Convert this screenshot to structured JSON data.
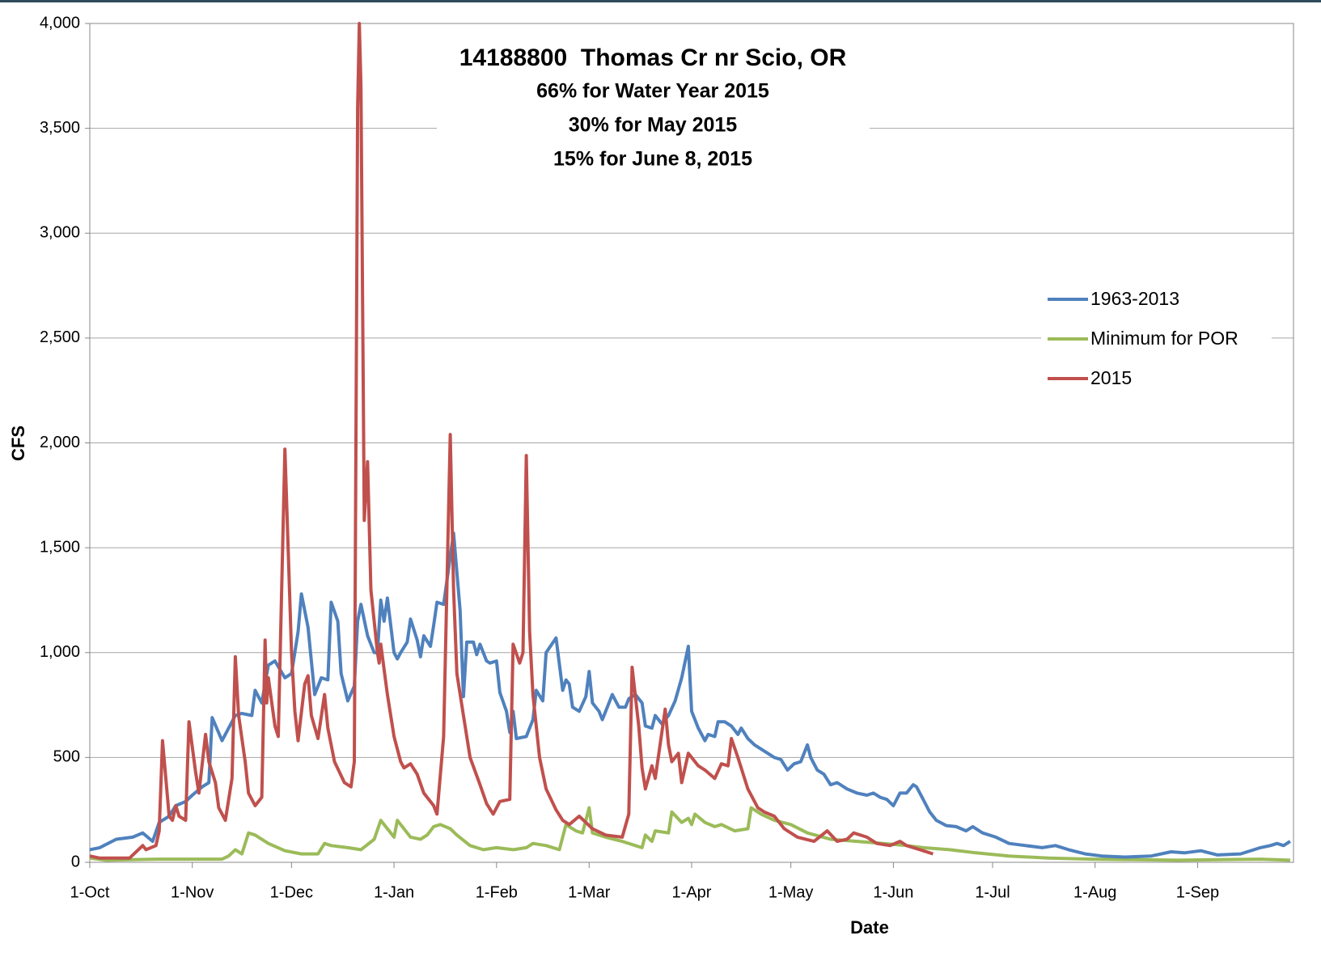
{
  "chart_data": {
    "type": "line",
    "title": "14188800  Thomas Cr nr Scio, OR",
    "subtitle": [
      "66% for Water Year 2015",
      "30% for May 2015",
      "15% for June 8, 2015"
    ],
    "x_label": "Date",
    "y_label": "CFS",
    "xlim": [
      0,
      364
    ],
    "xticks": [
      {
        "value": 0,
        "label": "1-Oct"
      },
      {
        "value": 31,
        "label": "1-Nov"
      },
      {
        "value": 61,
        "label": "1-Dec"
      },
      {
        "value": 92,
        "label": "1-Jan"
      },
      {
        "value": 123,
        "label": "1-Feb"
      },
      {
        "value": 151,
        "label": "1-Mar"
      },
      {
        "value": 182,
        "label": "1-Apr"
      },
      {
        "value": 212,
        "label": "1-May"
      },
      {
        "value": 243,
        "label": "1-Jun"
      },
      {
        "value": 273,
        "label": "1-Jul"
      },
      {
        "value": 304,
        "label": "1-Aug"
      },
      {
        "value": 335,
        "label": "1-Sep"
      }
    ],
    "ylim": [
      0,
      4000
    ],
    "yticks": [
      0,
      500,
      {
        "value": 1000,
        "label": "1,000"
      },
      {
        "value": 1500,
        "label": "1,500"
      },
      {
        "value": 2000,
        "label": "2,000"
      },
      {
        "value": 2500,
        "label": "2,500"
      },
      {
        "value": 3000,
        "label": "3,000"
      },
      {
        "value": 3500,
        "label": "3,500"
      },
      {
        "value": 4000,
        "label": "4,000"
      }
    ],
    "grid": true,
    "legend": "right",
    "series": [
      {
        "name": "1963-2013",
        "color": "#4f81bd",
        "x": [
          0,
          3,
          8,
          13,
          16,
          19,
          21,
          24,
          26,
          29,
          31,
          34,
          36,
          37,
          40,
          44,
          46,
          49,
          50,
          52,
          54,
          56,
          59,
          61,
          63,
          64,
          66,
          68,
          70,
          72,
          73,
          75,
          76,
          78,
          80,
          81,
          82,
          84,
          86,
          87,
          88,
          89,
          90,
          92,
          93,
          94,
          96,
          97,
          99,
          100,
          101,
          103,
          104,
          105,
          107,
          110,
          112,
          113,
          114,
          116,
          117,
          118,
          120,
          121,
          123,
          124,
          126,
          127,
          128,
          129,
          132,
          134,
          135,
          137,
          138,
          141,
          143,
          144,
          145,
          146,
          148,
          150,
          151,
          152,
          154,
          155,
          158,
          160,
          162,
          163,
          165,
          167,
          168,
          170,
          171,
          173,
          175,
          177,
          179,
          181,
          182,
          184,
          186,
          187,
          189,
          190,
          192,
          194,
          196,
          197,
          199,
          201,
          205,
          207,
          209,
          211,
          213,
          215,
          217,
          218,
          220,
          222,
          224,
          226,
          229,
          232,
          235,
          237,
          239,
          241,
          243,
          245,
          247,
          249,
          250,
          252,
          254,
          256,
          259,
          262,
          265,
          267,
          270,
          274,
          278,
          283,
          288,
          292,
          296,
          301,
          306,
          313,
          321,
          327,
          331,
          336,
          341,
          348,
          354,
          357,
          359,
          361,
          363
        ],
        "values": [
          60,
          70,
          110,
          120,
          140,
          100,
          190,
          220,
          270,
          290,
          320,
          360,
          380,
          690,
          580,
          700,
          710,
          700,
          820,
          760,
          940,
          960,
          880,
          900,
          1100,
          1280,
          1120,
          800,
          880,
          870,
          1240,
          1150,
          900,
          770,
          840,
          1150,
          1230,
          1080,
          1000,
          1000,
          1250,
          1150,
          1260,
          1000,
          970,
          1000,
          1050,
          1160,
          1060,
          980,
          1080,
          1030,
          1130,
          1240,
          1230,
          1570,
          1200,
          790,
          1050,
          1050,
          990,
          1040,
          960,
          950,
          960,
          810,
          720,
          620,
          720,
          590,
          600,
          680,
          820,
          770,
          1000,
          1070,
          820,
          870,
          850,
          740,
          720,
          790,
          910,
          760,
          720,
          680,
          800,
          740,
          740,
          780,
          800,
          760,
          650,
          640,
          700,
          660,
          700,
          770,
          880,
          1030,
          720,
          640,
          580,
          610,
          600,
          670,
          670,
          650,
          610,
          640,
          590,
          560,
          520,
          500,
          490,
          440,
          470,
          480,
          560,
          500,
          440,
          420,
          370,
          380,
          350,
          330,
          320,
          330,
          310,
          300,
          270,
          330,
          330,
          370,
          360,
          300,
          240,
          200,
          175,
          170,
          150,
          170,
          140,
          120,
          90,
          80,
          70,
          80,
          60,
          40,
          30,
          25,
          30,
          50,
          45,
          55,
          35,
          40,
          70,
          80,
          90,
          80,
          100
        ]
      },
      {
        "name": "Minimum for POR",
        "color": "#9bbb59",
        "x": [
          0,
          5,
          20,
          40,
          42,
          44,
          46,
          48,
          50,
          54,
          59,
          64,
          69,
          71,
          73,
          78,
          82,
          86,
          88,
          90,
          92,
          93,
          95,
          97,
          100,
          102,
          104,
          106,
          109,
          111,
          115,
          119,
          123,
          128,
          132,
          134,
          138,
          142,
          144,
          147,
          149,
          151,
          152,
          156,
          161,
          165,
          167,
          168,
          170,
          171,
          175,
          176,
          179,
          181,
          182,
          183,
          186,
          189,
          191,
          195,
          199,
          200,
          203,
          207,
          212,
          217,
          224,
          232,
          240,
          247,
          252,
          260,
          268,
          278,
          290,
          303,
          329,
          354,
          363
        ],
        "values": [
          20,
          10,
          15,
          15,
          30,
          60,
          40,
          140,
          130,
          90,
          55,
          40,
          40,
          90,
          80,
          70,
          60,
          110,
          200,
          160,
          120,
          200,
          160,
          120,
          110,
          130,
          170,
          180,
          160,
          130,
          80,
          60,
          70,
          60,
          70,
          90,
          80,
          60,
          180,
          150,
          140,
          260,
          140,
          120,
          100,
          80,
          70,
          130,
          100,
          150,
          140,
          240,
          190,
          210,
          180,
          230,
          190,
          170,
          180,
          150,
          160,
          260,
          230,
          200,
          180,
          140,
          110,
          100,
          90,
          80,
          70,
          60,
          45,
          30,
          20,
          15,
          10,
          15,
          10
        ]
      },
      {
        "name": "2015",
        "color": "#c0504d",
        "x": [
          0,
          3,
          12,
          16,
          17,
          20,
          21,
          22,
          24,
          25,
          26,
          27,
          29,
          30,
          32,
          33,
          35,
          36,
          38,
          39,
          41,
          43,
          44,
          45,
          47,
          48,
          50,
          52,
          53,
          53.5,
          54,
          56,
          57,
          59,
          61,
          62,
          63,
          65,
          66,
          67,
          69,
          71,
          72,
          74,
          77,
          79,
          80,
          81,
          81.5,
          82,
          83,
          84,
          85,
          87,
          87.5,
          88,
          90,
          92,
          94,
          95,
          97,
          99,
          101,
          104,
          105,
          107,
          109,
          110,
          111,
          113,
          115,
          118,
          120,
          122,
          124,
          127,
          128,
          130,
          131,
          132,
          133,
          134,
          136,
          138,
          141,
          143,
          145,
          148,
          150,
          152,
          156,
          161,
          163,
          164,
          166,
          167,
          168,
          170,
          171,
          174,
          175,
          176,
          178,
          179,
          181,
          184,
          186,
          189,
          191,
          193,
          194,
          196,
          199,
          202,
          204,
          207,
          210,
          214,
          219,
          223,
          226,
          229,
          231,
          235,
          238,
          242,
          245,
          247,
          251,
          255
        ],
        "values": [
          30,
          20,
          20,
          80,
          60,
          80,
          150,
          580,
          220,
          200,
          270,
          220,
          200,
          670,
          430,
          330,
          610,
          480,
          380,
          260,
          200,
          400,
          980,
          700,
          480,
          330,
          270,
          310,
          1060,
          760,
          880,
          650,
          600,
          1970,
          1000,
          720,
          580,
          850,
          890,
          700,
          590,
          800,
          640,
          480,
          380,
          360,
          480,
          3600,
          4000,
          3700,
          1630,
          1910,
          1300,
          1000,
          950,
          1040,
          800,
          600,
          480,
          450,
          470,
          420,
          330,
          270,
          230,
          600,
          2040,
          1300,
          900,
          700,
          500,
          370,
          280,
          230,
          290,
          300,
          1040,
          950,
          1000,
          1940,
          1100,
          800,
          500,
          350,
          250,
          200,
          180,
          220,
          190,
          160,
          130,
          120,
          230,
          930,
          650,
          450,
          350,
          460,
          400,
          730,
          560,
          480,
          520,
          380,
          520,
          460,
          440,
          400,
          470,
          460,
          590,
          500,
          350,
          260,
          240,
          220,
          160,
          120,
          100,
          150,
          100,
          110,
          140,
          120,
          90,
          80,
          100,
          80,
          60,
          40
        ]
      }
    ]
  }
}
